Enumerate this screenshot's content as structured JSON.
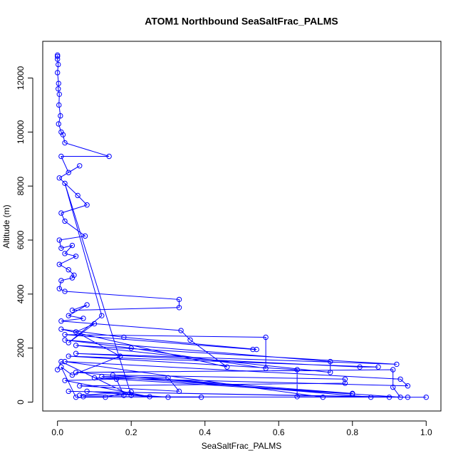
{
  "chart_data": {
    "type": "line",
    "title": "ATOM1 Northbound SeaSaltFrac_PALMS",
    "x_label": "SeaSaltFrac_PALMS",
    "y_label": "Altitude (m)",
    "color": "#0000ff",
    "xlim": [
      -0.04,
      1.04
    ],
    "ylim": [
      -330,
      13360
    ],
    "xticks": [
      {
        "value": 0,
        "label": "0.0"
      },
      0.2,
      0.4,
      0.6,
      0.8,
      {
        "value": 1,
        "label": "1.0"
      }
    ],
    "yticks": [
      0,
      2000,
      4000,
      6000,
      8000,
      10000,
      12000
    ],
    "x": [
      0,
      0,
      0,
      0.002,
      0,
      0.003,
      0.002,
      0.005,
      0.004,
      0.008,
      0.003,
      0.01,
      0.015,
      0.02,
      0.14,
      0.01,
      0.03,
      0.06,
      0.005,
      0.055,
      0.08,
      0.01,
      0.02,
      0.075,
      0.005,
      0.01,
      0.04,
      0.02,
      0.05,
      0.005,
      0.03,
      0.045,
      0.04,
      0.01,
      0.005,
      0.02,
      0.33,
      0.33,
      0.04,
      0.08,
      0.03,
      0.07,
      0.01,
      0.335,
      0.36,
      0.46,
      0.01,
      0.18,
      0.54,
      0.53,
      0.02,
      0.565,
      0.565,
      0.2,
      0.02,
      0.74,
      0.74,
      0.05,
      0.92,
      0.05,
      0.82,
      0.87,
      0.03,
      0.65,
      0.65,
      0.72,
      0.02,
      0.93,
      0.95,
      0.1,
      0.8,
      0.8,
      0.05,
      0.91,
      0.91,
      0.93,
      0.12,
      0.3,
      0.33,
      0.06,
      0.78,
      0.78,
      0.15,
      0.85,
      0.9,
      0.03,
      0.95,
      1.0,
      0.07,
      0.39,
      0.3,
      0.08,
      0.25,
      0.02,
      0.16,
      0.18,
      0.06,
      0.2,
      0.13,
      0.05,
      0.01,
      0.04,
      0.17,
      0.05,
      0.1,
      0.03,
      0.12,
      0.02,
      0.2,
      0.01,
      0.0
    ],
    "values": [
      12850,
      12800,
      12700,
      12500,
      12200,
      11800,
      11600,
      11400,
      11000,
      10600,
      10300,
      10000,
      9900,
      9600,
      9100,
      9100,
      8500,
      8750,
      8300,
      7650,
      7300,
      7000,
      6700,
      6150,
      6000,
      5700,
      5800,
      5500,
      5400,
      5100,
      4900,
      4700,
      4600,
      4500,
      4200,
      4100,
      3800,
      3500,
      3400,
      3600,
      3200,
      3100,
      3000,
      2650,
      2300,
      1300,
      2700,
      2400,
      1950,
      1950,
      2500,
      2400,
      1250,
      2000,
      2300,
      1500,
      1100,
      2100,
      1400,
      1800,
      1300,
      1300,
      1700,
      1200,
      200,
      180,
      1500,
      850,
      600,
      900,
      300,
      320,
      1100,
      1200,
      550,
      180,
      950,
      900,
      400,
      600,
      700,
      850,
      1000,
      180,
      180,
      400,
      180,
      180,
      200,
      180,
      180,
      400,
      200,
      800,
      850,
      250,
      250,
      380,
      180,
      180,
      1300,
      1000,
      1700,
      2600,
      2900,
      2200,
      3200,
      8100,
      250,
      1500,
      1200
    ]
  }
}
